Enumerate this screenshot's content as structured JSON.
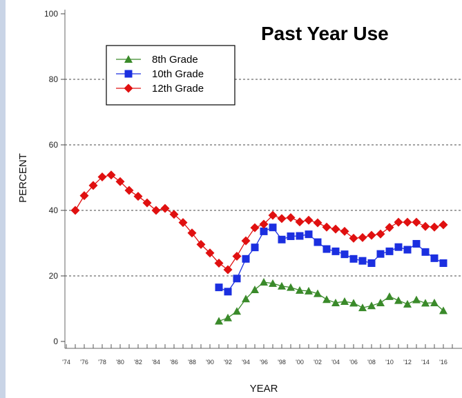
{
  "chart_data": {
    "type": "line",
    "title": "Past Year Use",
    "xlabel": "YEAR",
    "ylabel": "PERCENT",
    "ylim": [
      0,
      100
    ],
    "yticks": [
      0,
      20,
      40,
      60,
      80,
      100
    ],
    "xlim": [
      1974,
      2016
    ],
    "xticks": [
      {
        "value": 1974,
        "label": "'74"
      },
      {
        "value": 1976,
        "label": "'76"
      },
      {
        "value": 1978,
        "label": "'78"
      },
      {
        "value": 1980,
        "label": "'80"
      },
      {
        "value": 1982,
        "label": "'82"
      },
      {
        "value": 1984,
        "label": "'84"
      },
      {
        "value": 1986,
        "label": "'86"
      },
      {
        "value": 1988,
        "label": "'88"
      },
      {
        "value": 1990,
        "label": "'90"
      },
      {
        "value": 1992,
        "label": "'92"
      },
      {
        "value": 1994,
        "label": "'94"
      },
      {
        "value": 1996,
        "label": "'96"
      },
      {
        "value": 1998,
        "label": "'98"
      },
      {
        "value": 2000,
        "label": "'00"
      },
      {
        "value": 2002,
        "label": "'02"
      },
      {
        "value": 2004,
        "label": "'04"
      },
      {
        "value": 2006,
        "label": "'06"
      },
      {
        "value": 2008,
        "label": "'08"
      },
      {
        "value": 2010,
        "label": "'10"
      },
      {
        "value": 2012,
        "label": "'12"
      },
      {
        "value": 2014,
        "label": "'14"
      },
      {
        "value": 2016,
        "label": "'16"
      }
    ],
    "grid": "horizontal-dashed",
    "legend": "top-left",
    "series": [
      {
        "name": "8th Grade",
        "marker": "triangle",
        "color": "#3a8a2a",
        "x": [
          1991,
          1992,
          1993,
          1994,
          1995,
          1996,
          1997,
          1998,
          1999,
          2000,
          2001,
          2002,
          2003,
          2004,
          2005,
          2006,
          2007,
          2008,
          2009,
          2010,
          2011,
          2012,
          2013,
          2014,
          2015,
          2016
        ],
        "values": [
          6.2,
          7.2,
          9.2,
          13.0,
          15.8,
          18.1,
          17.7,
          16.9,
          16.5,
          15.6,
          15.4,
          14.6,
          12.8,
          11.8,
          12.2,
          11.7,
          10.3,
          10.9,
          11.8,
          13.7,
          12.5,
          11.4,
          12.7,
          11.7,
          11.8,
          9.4
        ]
      },
      {
        "name": "10th Grade",
        "marker": "square",
        "color": "#1b2fe0",
        "x": [
          1991,
          1992,
          1993,
          1994,
          1995,
          1996,
          1997,
          1998,
          1999,
          2000,
          2001,
          2002,
          2003,
          2004,
          2005,
          2006,
          2007,
          2008,
          2009,
          2010,
          2011,
          2012,
          2013,
          2014,
          2015,
          2016
        ],
        "values": [
          16.5,
          15.2,
          19.2,
          25.2,
          28.7,
          33.6,
          34.8,
          31.1,
          32.1,
          32.2,
          32.7,
          30.3,
          28.2,
          27.5,
          26.6,
          25.2,
          24.6,
          23.9,
          26.7,
          27.5,
          28.8,
          28.0,
          29.8,
          27.3,
          25.4,
          23.9
        ]
      },
      {
        "name": "12th Grade",
        "marker": "diamond",
        "color": "#e01010",
        "x": [
          1975,
          1976,
          1977,
          1978,
          1979,
          1980,
          1981,
          1982,
          1983,
          1984,
          1985,
          1986,
          1987,
          1988,
          1989,
          1990,
          1991,
          1992,
          1993,
          1994,
          1995,
          1996,
          1997,
          1998,
          1999,
          2000,
          2001,
          2002,
          2003,
          2004,
          2005,
          2006,
          2007,
          2008,
          2009,
          2010,
          2011,
          2012,
          2013,
          2014,
          2015,
          2016
        ],
        "values": [
          40.0,
          44.5,
          47.6,
          50.2,
          50.8,
          48.8,
          46.1,
          44.3,
          42.3,
          40.0,
          40.6,
          38.8,
          36.3,
          33.1,
          29.6,
          27.0,
          23.9,
          21.9,
          26.0,
          30.7,
          34.7,
          35.8,
          38.5,
          37.5,
          37.8,
          36.5,
          37.0,
          36.2,
          34.9,
          34.3,
          33.6,
          31.5,
          31.7,
          32.4,
          32.8,
          34.8,
          36.4,
          36.4,
          36.4,
          35.1,
          34.9,
          35.6
        ]
      }
    ]
  }
}
